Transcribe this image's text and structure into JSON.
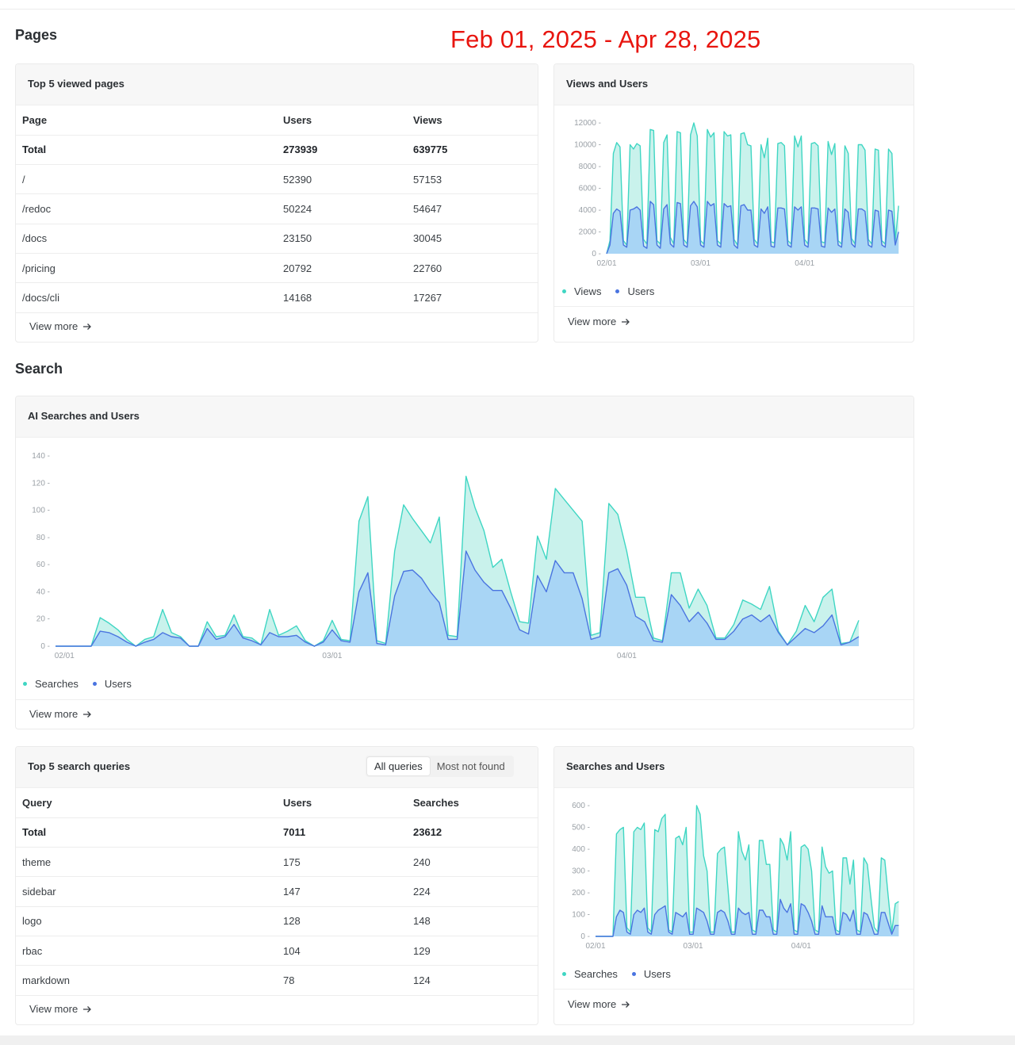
{
  "date_range": "Feb 01, 2025 - Apr 28, 2025",
  "colors": {
    "views_line": "#3fd6c3",
    "views_fill": "#c3f1ea",
    "users_line": "#4a74e0",
    "users_fill": "#a7d3f5"
  },
  "pages": {
    "title": "Pages",
    "top_pages": {
      "title": "Top 5 viewed pages",
      "columns": [
        "Page",
        "Users",
        "Views"
      ],
      "total": {
        "label": "Total",
        "users": "273939",
        "views": "639775"
      },
      "rows": [
        {
          "page": "/",
          "users": "52390",
          "views": "57153"
        },
        {
          "page": "/redoc",
          "users": "50224",
          "views": "54647"
        },
        {
          "page": "/docs",
          "users": "23150",
          "views": "30045"
        },
        {
          "page": "/pricing",
          "users": "20792",
          "views": "22760"
        },
        {
          "page": "/docs/cli",
          "users": "14168",
          "views": "17267"
        }
      ],
      "view_more": "View more"
    },
    "views_users": {
      "title": "Views and Users",
      "legend": {
        "a": "Views",
        "b": "Users"
      },
      "view_more": "View more"
    }
  },
  "search": {
    "title": "Search",
    "ai_searches": {
      "title": "AI Searches and Users",
      "legend": {
        "a": "Searches",
        "b": "Users"
      },
      "view_more": "View more"
    },
    "top_queries": {
      "title": "Top 5 search queries",
      "tabs": [
        "All queries",
        "Most not found"
      ],
      "columns": [
        "Query",
        "Users",
        "Searches"
      ],
      "total": {
        "label": "Total",
        "users": "7011",
        "searches": "23612"
      },
      "rows": [
        {
          "query": "theme",
          "users": "175",
          "searches": "240"
        },
        {
          "query": "sidebar",
          "users": "147",
          "searches": "224"
        },
        {
          "query": "logo",
          "users": "128",
          "searches": "148"
        },
        {
          "query": "rbac",
          "users": "104",
          "searches": "129"
        },
        {
          "query": "markdown",
          "users": "78",
          "searches": "124"
        }
      ],
      "view_more": "View more"
    },
    "searches_users": {
      "title": "Searches and Users",
      "legend": {
        "a": "Searches",
        "b": "Users"
      },
      "view_more": "View more"
    }
  },
  "chart_data": [
    {
      "id": "views_users",
      "type": "area",
      "ylim": [
        0,
        12000
      ],
      "yticks": [
        0,
        2000,
        4000,
        6000,
        8000,
        10000,
        12000
      ],
      "xticks": [
        {
          "day": 1,
          "label": "02/01"
        },
        {
          "day": 29,
          "label": "03/01"
        },
        {
          "day": 60,
          "label": "04/01"
        }
      ],
      "x_range": [
        1,
        87
      ],
      "series": [
        {
          "name": "Views",
          "values": [
            0,
            1200,
            9200,
            10200,
            9800,
            1200,
            800,
            10000,
            9600,
            10100,
            9900,
            1300,
            900,
            11400,
            11300,
            1200,
            900,
            10200,
            10900,
            1500,
            900,
            11200,
            11100,
            1300,
            900,
            10900,
            12000,
            10800,
            1200,
            900,
            11400,
            10700,
            11100,
            1200,
            900,
            11200,
            10800,
            10900,
            1300,
            800,
            11000,
            11100,
            10000,
            9900,
            1300,
            900,
            10000,
            8800,
            10600,
            1100,
            1000,
            10100,
            10200,
            9900,
            1200,
            900,
            10800,
            9800,
            10800,
            1300,
            900,
            10100,
            10200,
            9900,
            1100,
            1000,
            10300,
            9100,
            10100,
            1200,
            900,
            9900,
            9200,
            1400,
            900,
            10000,
            10000,
            9500,
            1300,
            900,
            9600,
            9500,
            1200,
            900,
            9600,
            9200,
            1200,
            4400
          ]
        },
        {
          "name": "Users",
          "values": [
            0,
            800,
            3700,
            4100,
            3900,
            800,
            600,
            4000,
            4100,
            4300,
            4000,
            700,
            500,
            4800,
            4500,
            800,
            500,
            4100,
            4500,
            900,
            600,
            4700,
            4600,
            800,
            600,
            4400,
            4800,
            4300,
            800,
            600,
            4800,
            4400,
            4600,
            800,
            600,
            4600,
            4300,
            4400,
            800,
            500,
            4400,
            4500,
            4000,
            4000,
            800,
            600,
            4100,
            3700,
            4300,
            700,
            600,
            4200,
            4200,
            4100,
            800,
            600,
            4300,
            4000,
            4300,
            800,
            600,
            4200,
            4200,
            4100,
            700,
            600,
            4200,
            3800,
            4100,
            800,
            600,
            4100,
            3800,
            900,
            600,
            4100,
            4100,
            3900,
            800,
            600,
            4000,
            3900,
            800,
            600,
            4000,
            3900,
            800,
            2000
          ]
        }
      ]
    },
    {
      "id": "ai_searches",
      "type": "area",
      "ylim": [
        0,
        140
      ],
      "yticks": [
        0,
        20,
        40,
        60,
        80,
        100,
        120,
        140
      ],
      "xticks": [
        {
          "day": 2,
          "label": "02/01"
        },
        {
          "day": 32,
          "label": "03/01"
        },
        {
          "day": 65,
          "label": "04/01"
        }
      ],
      "x_range": [
        1,
        95
      ],
      "series": [
        {
          "name": "Searches",
          "values": [
            0,
            0,
            0,
            0,
            0,
            21,
            17,
            12,
            5,
            0,
            5,
            7,
            27,
            10,
            7,
            0,
            0,
            18,
            7,
            8,
            23,
            7,
            6,
            1,
            27,
            8,
            11,
            15,
            4,
            0,
            4,
            19,
            5,
            4,
            92,
            110,
            4,
            2,
            70,
            104,
            94,
            85,
            76,
            95,
            8,
            7,
            125,
            102,
            85,
            58,
            64,
            40,
            18,
            17,
            81,
            64,
            116,
            108,
            100,
            92,
            8,
            10,
            105,
            97,
            70,
            36,
            36,
            6,
            4,
            54,
            54,
            28,
            42,
            30,
            6,
            6,
            16,
            34,
            31,
            27,
            44,
            11,
            1,
            11,
            30,
            18,
            36,
            42,
            2,
            3,
            19
          ]
        },
        {
          "name": "Users",
          "values": [
            0,
            0,
            0,
            0,
            0,
            11,
            10,
            7,
            3,
            0,
            3,
            5,
            10,
            7,
            6,
            0,
            0,
            13,
            5,
            7,
            16,
            6,
            4,
            1,
            10,
            7,
            7,
            8,
            3,
            0,
            3,
            12,
            4,
            3,
            40,
            54,
            2,
            1,
            37,
            55,
            56,
            50,
            40,
            32,
            5,
            5,
            70,
            56,
            47,
            41,
            41,
            28,
            12,
            9,
            52,
            40,
            63,
            54,
            54,
            35,
            5,
            7,
            54,
            57,
            45,
            22,
            18,
            4,
            3,
            38,
            30,
            18,
            25,
            17,
            5,
            5,
            11,
            20,
            23,
            18,
            23,
            10,
            1,
            7,
            13,
            10,
            15,
            23,
            1,
            3,
            7
          ]
        }
      ]
    },
    {
      "id": "searches_users",
      "type": "area",
      "ylim": [
        0,
        600
      ],
      "yticks": [
        0,
        100,
        200,
        300,
        400,
        500,
        600
      ],
      "xticks": [
        {
          "day": 1,
          "label": "02/01"
        },
        {
          "day": 29,
          "label": "03/01"
        },
        {
          "day": 60,
          "label": "04/01"
        }
      ],
      "x_range": [
        1,
        87
      ],
      "series": [
        {
          "name": "Searches",
          "values": [
            0,
            0,
            0,
            0,
            0,
            0,
            470,
            490,
            500,
            40,
            20,
            480,
            500,
            490,
            520,
            40,
            20,
            490,
            480,
            540,
            560,
            30,
            20,
            450,
            460,
            420,
            500,
            20,
            20,
            600,
            560,
            370,
            300,
            20,
            20,
            380,
            400,
            410,
            220,
            20,
            20,
            480,
            390,
            350,
            420,
            30,
            20,
            440,
            440,
            330,
            330,
            30,
            20,
            450,
            420,
            350,
            480,
            30,
            20,
            410,
            420,
            400,
            300,
            30,
            20,
            410,
            320,
            290,
            300,
            30,
            20,
            360,
            360,
            240,
            350,
            30,
            20,
            360,
            330,
            180,
            40,
            20,
            360,
            350,
            180,
            20,
            150,
            160
          ]
        },
        {
          "name": "Users",
          "values": [
            0,
            0,
            0,
            0,
            0,
            0,
            90,
            120,
            110,
            20,
            10,
            100,
            120,
            110,
            130,
            20,
            10,
            100,
            120,
            130,
            140,
            20,
            10,
            110,
            100,
            90,
            110,
            10,
            10,
            130,
            120,
            110,
            70,
            10,
            10,
            110,
            120,
            110,
            70,
            10,
            10,
            130,
            110,
            100,
            110,
            10,
            10,
            120,
            120,
            90,
            90,
            10,
            10,
            170,
            130,
            110,
            150,
            10,
            10,
            150,
            140,
            110,
            70,
            10,
            10,
            140,
            90,
            90,
            90,
            10,
            10,
            110,
            100,
            70,
            120,
            10,
            10,
            110,
            100,
            60,
            10,
            10,
            110,
            110,
            60,
            10,
            50,
            50
          ]
        }
      ]
    }
  ]
}
